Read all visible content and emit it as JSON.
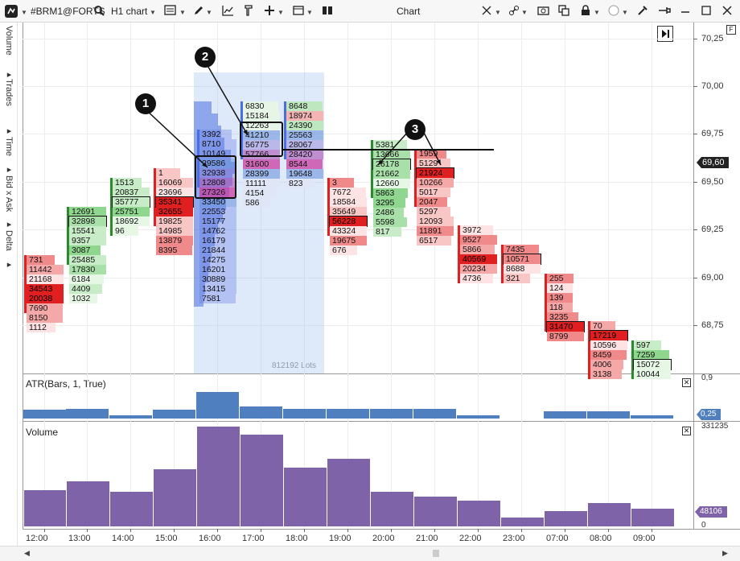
{
  "toolbar": {
    "symbol": "#BRM1@FORTS",
    "timeframe": "H1 chart",
    "title": "Chart"
  },
  "side_tabs": [
    "Volume",
    "Trades",
    "Time",
    "Bid x Ask",
    "Delta"
  ],
  "price_axis": {
    "labels": [
      "70,25",
      "70,00",
      "69,75",
      "69,50",
      "69,25",
      "69,00",
      "68,75"
    ],
    "current_price": "69,60"
  },
  "atr_panel": {
    "title": "ATR(Bars, 1, True)",
    "axis_top": "0,9",
    "current": "0,25",
    "values": [
      0.17,
      0.2,
      0.06,
      0.17,
      0.53,
      0.24,
      0.2,
      0.2,
      0.2,
      0.2,
      0.07,
      0,
      0.14,
      0.14,
      0.06
    ]
  },
  "volume_panel": {
    "title": "Volume",
    "axis_top": "331235",
    "axis_bottom": "0",
    "current": "48106",
    "values": [
      120000,
      150000,
      115000,
      190000,
      331235,
      305000,
      195000,
      225000,
      115000,
      100000,
      85000,
      30000,
      50000,
      78000,
      58000
    ]
  },
  "time_labels": [
    "12:00",
    "13:00",
    "14:00",
    "15:00",
    "16:00",
    "17:00",
    "18:00",
    "19:00",
    "20:00",
    "21:00",
    "22:00",
    "23:00",
    "07:00",
    "08:00",
    "09:00"
  ],
  "profile_label": "812192 Lots",
  "callouts": [
    "1",
    "2",
    "3"
  ],
  "columns": [
    {
      "cells": [
        "731",
        "11442",
        "21168",
        "34543",
        "20038",
        "7690",
        "8150",
        "1112"
      ]
    },
    {
      "cells": [
        "12691",
        "32898",
        "15541",
        "9357",
        "3087",
        "25485",
        "17830",
        "6184",
        "4409",
        "1032"
      ]
    },
    {
      "cells": [
        "1513",
        "20837",
        "35777",
        "25751",
        "18692",
        "96"
      ]
    },
    {
      "cells": [
        "1",
        "16069",
        "23696",
        "35341",
        "32655",
        "19825",
        "14985",
        "13879",
        "8395"
      ]
    },
    {
      "cells": [
        "3392",
        "8710",
        "10149",
        "29586",
        "32938",
        "12808",
        "27326",
        "33450",
        "22553",
        "15177",
        "14762",
        "16179",
        "21844",
        "14275",
        "16201",
        "30889",
        "13415",
        "7581"
      ]
    },
    {
      "cells": [
        "6830",
        "15184",
        "12263",
        "41210",
        "56775",
        "57766",
        "31600",
        "28399",
        "11111",
        "4154",
        "586"
      ]
    },
    {
      "cells": [
        "8648",
        "18974",
        "24390",
        "25563",
        "28067",
        "28420",
        "8544",
        "19648",
        "823"
      ]
    },
    {
      "cells": [
        "3",
        "7672",
        "18584",
        "35649",
        "56228",
        "43324",
        "19675",
        "676"
      ]
    },
    {
      "cells": [
        "5381",
        "13666",
        "26178",
        "21662",
        "12660",
        "5863",
        "3295",
        "2486",
        "5598",
        "817"
      ]
    },
    {
      "cells": [
        "1959",
        "5129",
        "21924",
        "10266",
        "5017",
        "2047",
        "5297",
        "12093",
        "11891",
        "6517"
      ]
    },
    {
      "cells": [
        "3972",
        "9527",
        "5866",
        "40569",
        "20234",
        "4736"
      ]
    },
    {
      "cells": [
        "7435",
        "10571",
        "8688",
        "321"
      ]
    },
    {
      "cells": [
        "255",
        "124",
        "139",
        "118",
        "3235",
        "31470",
        "8799"
      ]
    },
    {
      "cells": [
        "70",
        "17219",
        "10596",
        "8459",
        "4006",
        "3138"
      ]
    },
    {
      "cells": [
        "597",
        "7259",
        "15072",
        "10044"
      ]
    }
  ],
  "colors": {
    "buy": "#2b8a2b",
    "sell": "#e02020",
    "profile": "#4a6ee0",
    "atr": "#4f7fbf",
    "volume": "#7f63a8"
  }
}
